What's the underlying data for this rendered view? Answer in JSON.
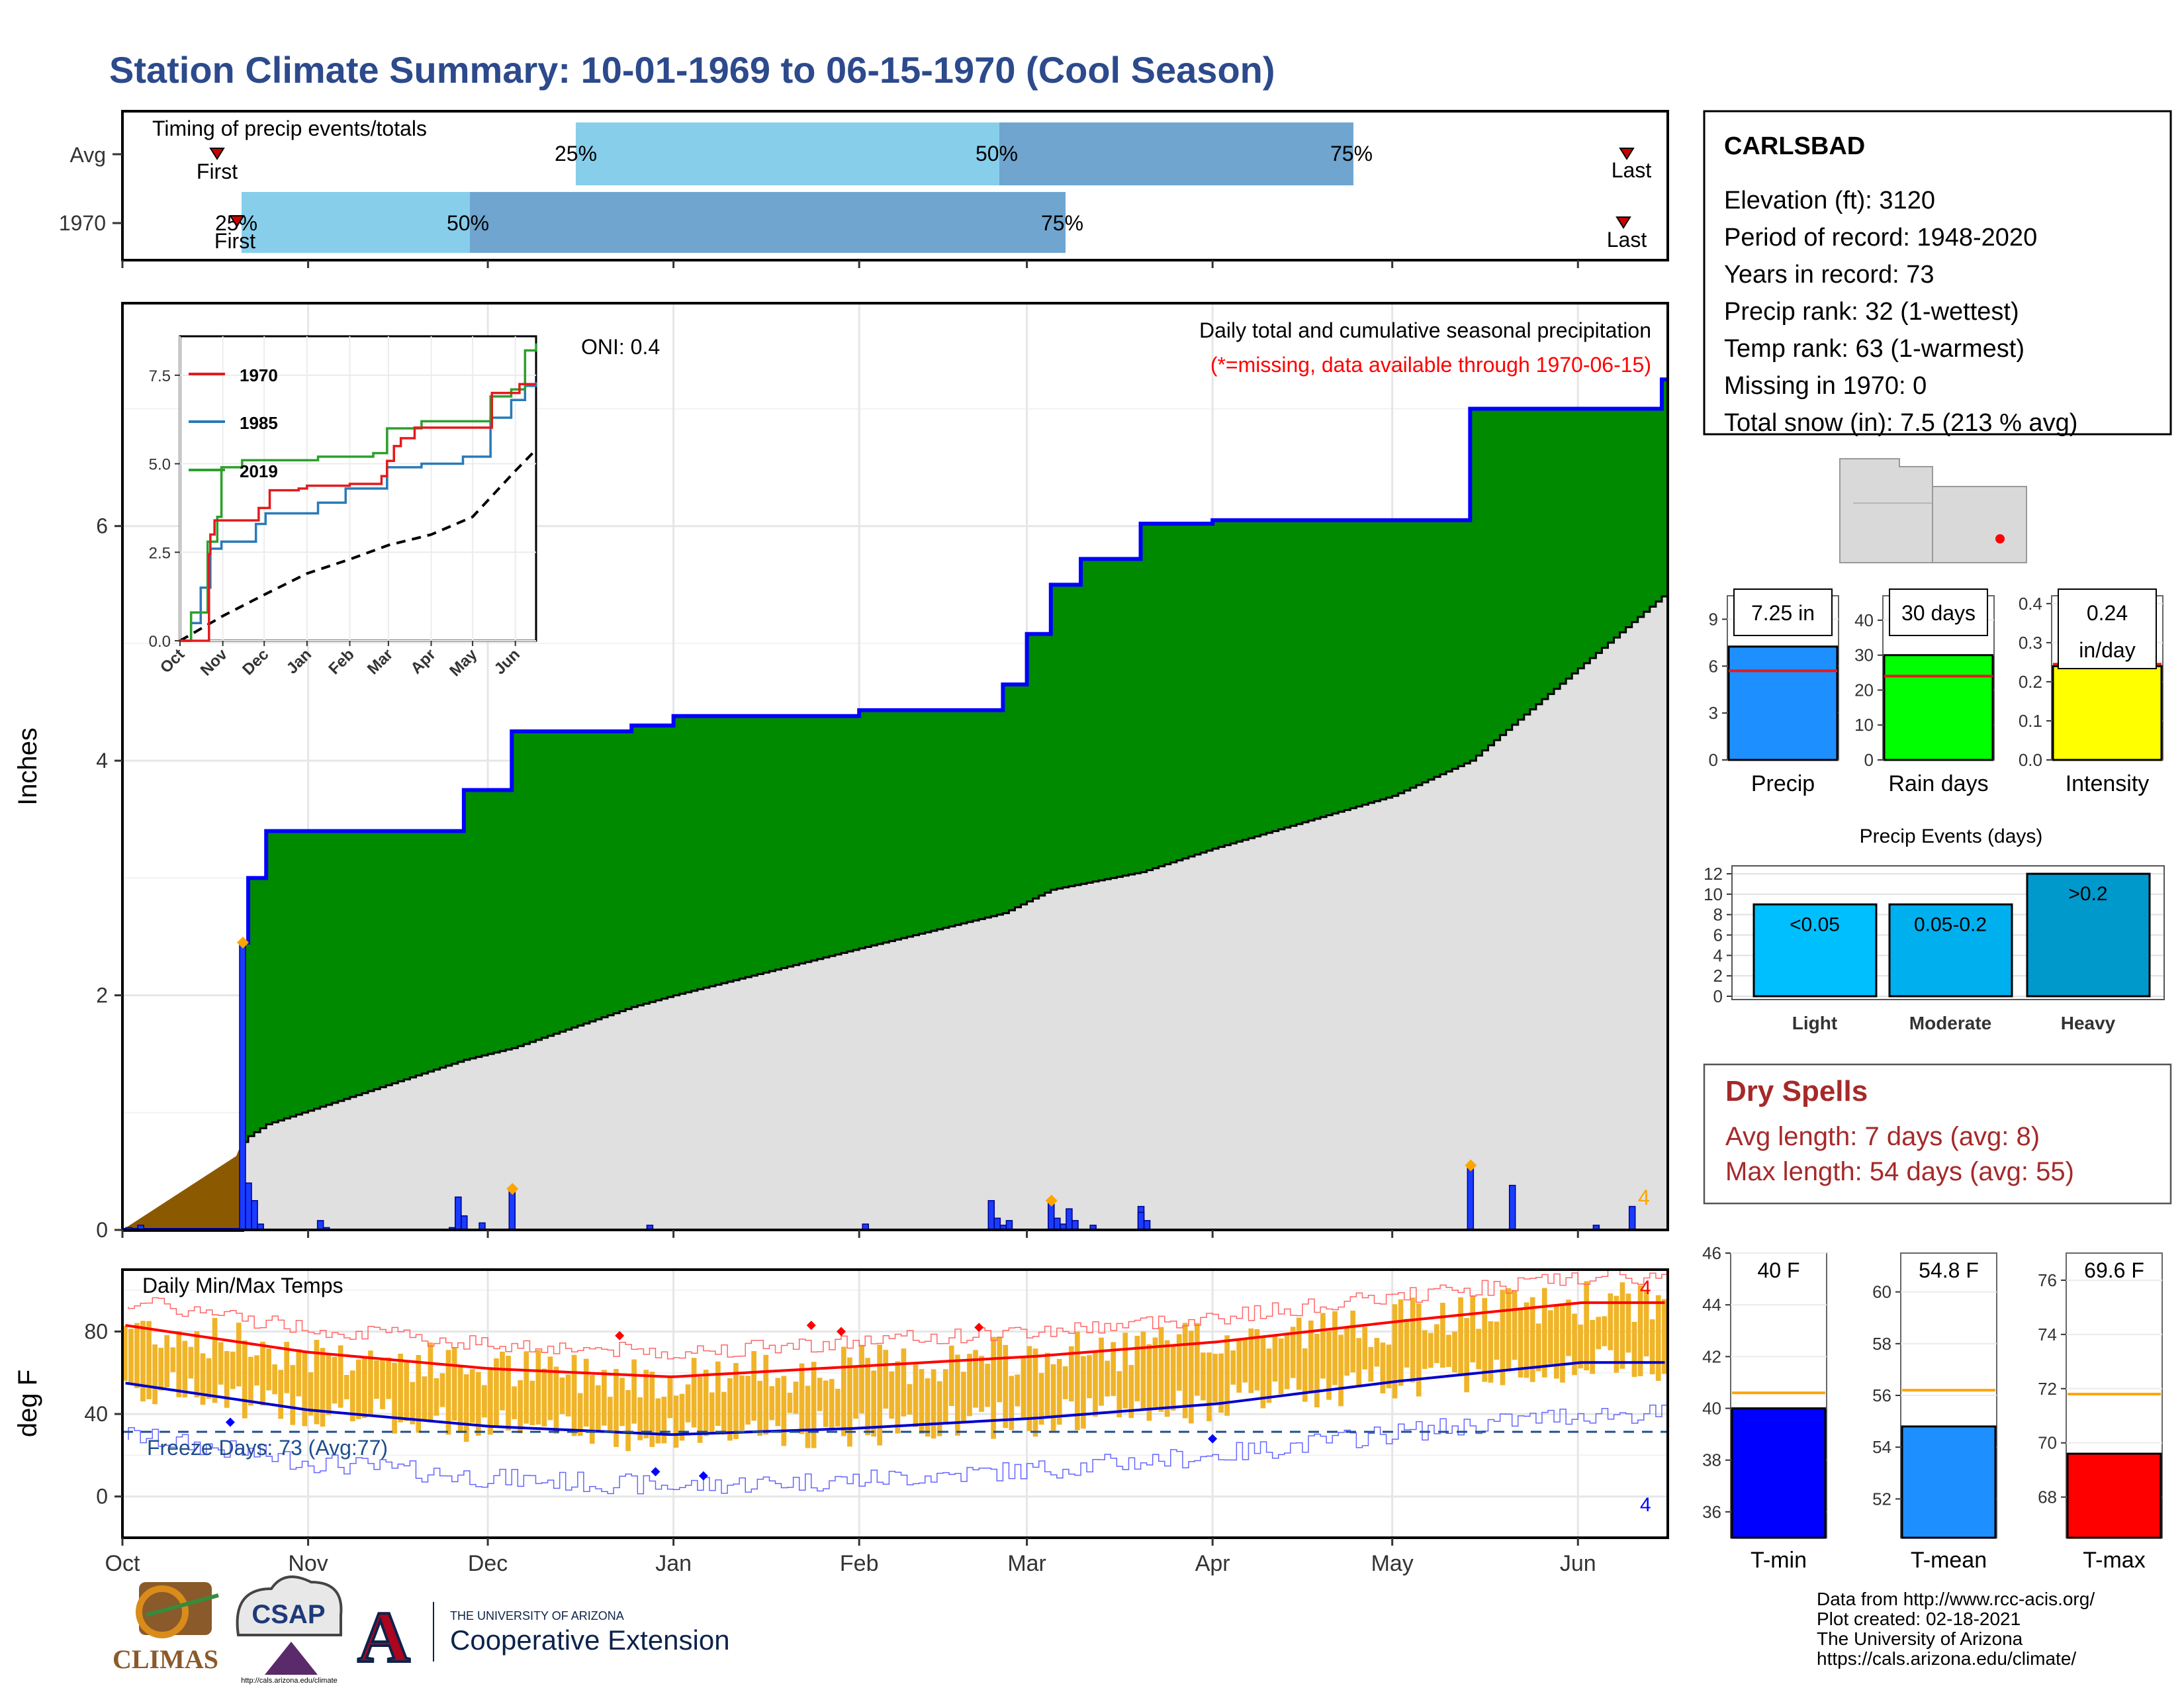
{
  "title": "Station Climate Summary: 10-01-1969 to 06-15-1970 (Cool Season)",
  "colors": {
    "title": "#2c4a8c",
    "light_blue": "#87ceeb",
    "mid_blue": "#6fa5cf",
    "green": "#008a00",
    "grey": "#e0e0e0",
    "brown": "#8b5a00",
    "blue": "#0000ff",
    "red": "#ff0000",
    "orange": "#ffa500",
    "gold": "#f0b429"
  },
  "timing": {
    "label": "Timing of precip events/totals",
    "rows": [
      {
        "name": "Avg",
        "first": "First",
        "last": "Last",
        "p25": "25%",
        "p50": "50%",
        "p75": "75%"
      },
      {
        "name": "1970",
        "first": "First",
        "last": "Last",
        "p25": "25%",
        "p50": "50%",
        "p75": "75%"
      }
    ]
  },
  "precip_panel": {
    "ylabel": "Inches",
    "oni": "ONI: 0.4",
    "note1": "Daily total and cumulative seasonal precipitation",
    "note2": "(*=missing, data available through 1970-06-15)",
    "corner_mark": "4",
    "yticks": [
      "0",
      "2",
      "4",
      "6"
    ],
    "months": [
      "Oct",
      "Nov",
      "Dec",
      "Jan",
      "Feb",
      "Mar",
      "Apr",
      "May",
      "Jun"
    ]
  },
  "inset": {
    "legend": [
      "1970",
      "1985",
      "2019"
    ],
    "yticks": [
      "0.0",
      "2.5",
      "5.0",
      "7.5"
    ],
    "months": [
      "Oct",
      "Nov",
      "Dec",
      "Jan",
      "Feb",
      "Mar",
      "Apr",
      "May",
      "Jun"
    ]
  },
  "temp_panel": {
    "label": "Daily Min/Max Temps",
    "ylabel": "deg F",
    "freeze": "Freeze Days: 73 (Avg:77)",
    "mark_top": "4",
    "mark_bottom": "4",
    "yticks": [
      "0",
      "40",
      "80"
    ]
  },
  "info": {
    "station": "CARLSBAD",
    "lines": [
      "Elevation (ft): 3120",
      "Period of record: 1948-2020",
      "Years in record: 73",
      "Precip rank: 32 (1-wettest)",
      "Temp rank: 63 (1-warmest)",
      "Missing in 1970: 0",
      "Total snow (in): 7.5 (213 % avg)"
    ]
  },
  "mini_bars": [
    {
      "name": "Precip",
      "value_label": "7.25 in",
      "value": 7.25,
      "avg": 5.7,
      "max": 10.5,
      "ticks": [
        "0",
        "3",
        "6",
        "9"
      ],
      "color": "#1e8fff"
    },
    {
      "name": "Rain days",
      "value_label": "30 days",
      "value": 30,
      "avg": 24,
      "max": 47,
      "ticks": [
        "0",
        "10",
        "20",
        "30",
        "40"
      ],
      "color": "#00ff00"
    },
    {
      "name": "Intensity",
      "value_label": "0.24",
      "unit_label": "in/day",
      "value": 0.24,
      "avg": 0.245,
      "max": 0.42,
      "ticks": [
        "0.0",
        "0.1",
        "0.2",
        "0.3",
        "0.4"
      ],
      "color": "#ffff00"
    }
  ],
  "events": {
    "title": "Precip Events (days)",
    "ticks": [
      "0",
      "2",
      "4",
      "6",
      "8",
      "10",
      "12"
    ],
    "bars": [
      {
        "name": "Light",
        "label": "<0.05",
        "value": 9,
        "color": "#00bfff"
      },
      {
        "name": "Moderate",
        "label": "0.05-0.2",
        "value": 9,
        "color": "#00b0ee"
      },
      {
        "name": "Heavy",
        "label": ">0.2",
        "value": 12,
        "color": "#0099cc"
      }
    ]
  },
  "dry_spells": {
    "title": "Dry Spells",
    "avg": "Avg length: 7 days (avg: 8)",
    "max": "Max length: 54 days (avg: 55)"
  },
  "temp_bars": [
    {
      "name": "T-min",
      "label": "40 F",
      "value": 40,
      "avg": 40.6,
      "min": 35,
      "max": 46,
      "ticks": [
        "36",
        "38",
        "40",
        "42",
        "44",
        "46"
      ],
      "color": "#0000ff"
    },
    {
      "name": "T-mean",
      "label": "54.8 F",
      "value": 54.8,
      "avg": 56.2,
      "min": 50.5,
      "max": 61.5,
      "ticks": [
        "52",
        "54",
        "56",
        "58",
        "60"
      ],
      "color": "#1e8fff"
    },
    {
      "name": "T-max",
      "label": "69.6 F",
      "value": 69.6,
      "avg": 71.8,
      "min": 66.5,
      "max": 77,
      "ticks": [
        "68",
        "70",
        "72",
        "74",
        "76"
      ],
      "color": "#ff0000"
    }
  ],
  "footer": {
    "line1": "Data from http://www.rcc-acis.org/",
    "line2": "Plot created: 02-18-2021",
    "line3": "The University of Arizona",
    "line4": "https://cals.arizona.edu/climate/"
  },
  "logos": {
    "climas": "CLIMAS",
    "csap": "CSAP",
    "csap_url": "http://cals.arizona.edu/climate",
    "ua_small": "THE UNIVERSITY OF ARIZONA",
    "ua_big": "Cooperative Extension",
    "ua_letter": "A"
  },
  "chart_data": [
    {
      "type": "area",
      "title": "Daily total and cumulative seasonal precipitation",
      "ylabel": "Inches",
      "ylim": [
        0,
        7.9
      ],
      "x": [
        "1969-10-01",
        "1969-10-20",
        "1969-10-21",
        "1969-10-22",
        "1969-10-25",
        "1969-11-27",
        "1969-12-05",
        "1969-12-25",
        "1970-01-01",
        "1970-02-01",
        "1970-02-25",
        "1970-03-01",
        "1970-03-05",
        "1970-03-10",
        "1970-03-15",
        "1970-03-20",
        "1970-04-01",
        "1970-05-01",
        "1970-05-14",
        "1970-06-15"
      ],
      "series": [
        {
          "name": "cumulative",
          "values": [
            0.0,
            0.0,
            2.45,
            3.0,
            3.4,
            3.75,
            4.25,
            4.3,
            4.38,
            4.43,
            4.65,
            5.08,
            5.5,
            5.72,
            5.72,
            6.02,
            6.05,
            6.05,
            7.0,
            7.25
          ]
        },
        {
          "name": "average",
          "values": [
            0.0,
            0.63,
            0.75,
            0.8,
            0.9,
            1.45,
            1.55,
            1.9,
            2.0,
            2.4,
            2.7,
            2.8,
            2.9,
            2.95,
            3.0,
            3.05,
            3.25,
            3.7,
            4.0,
            5.4
          ]
        }
      ],
      "daily_events": [
        [
          "1969-10-21",
          2.45
        ],
        [
          "1969-10-22",
          0.4
        ],
        [
          "1969-11-26",
          0.28
        ],
        [
          "1969-12-05",
          0.35
        ],
        [
          "1970-02-23",
          0.25
        ],
        [
          "1970-03-05",
          0.25
        ],
        [
          "1970-03-20",
          0.2
        ],
        [
          "1970-05-14",
          0.55
        ],
        [
          "1970-05-21",
          0.38
        ],
        [
          "1970-06-10",
          0.2
        ]
      ]
    },
    {
      "type": "line",
      "title": "Daily Min/Max Temps",
      "ylabel": "deg F",
      "ylim": [
        -20,
        110
      ],
      "x": [
        "Oct",
        "Nov",
        "Dec",
        "Jan",
        "Feb",
        "Mar",
        "Apr",
        "May",
        "Jun"
      ],
      "series": [
        {
          "name": "avg max",
          "values": [
            83,
            70,
            62,
            58,
            63,
            68,
            75,
            85,
            94
          ]
        },
        {
          "name": "avg min",
          "values": [
            55,
            42,
            34,
            30,
            33,
            38,
            45,
            56,
            65
          ]
        }
      ]
    }
  ]
}
